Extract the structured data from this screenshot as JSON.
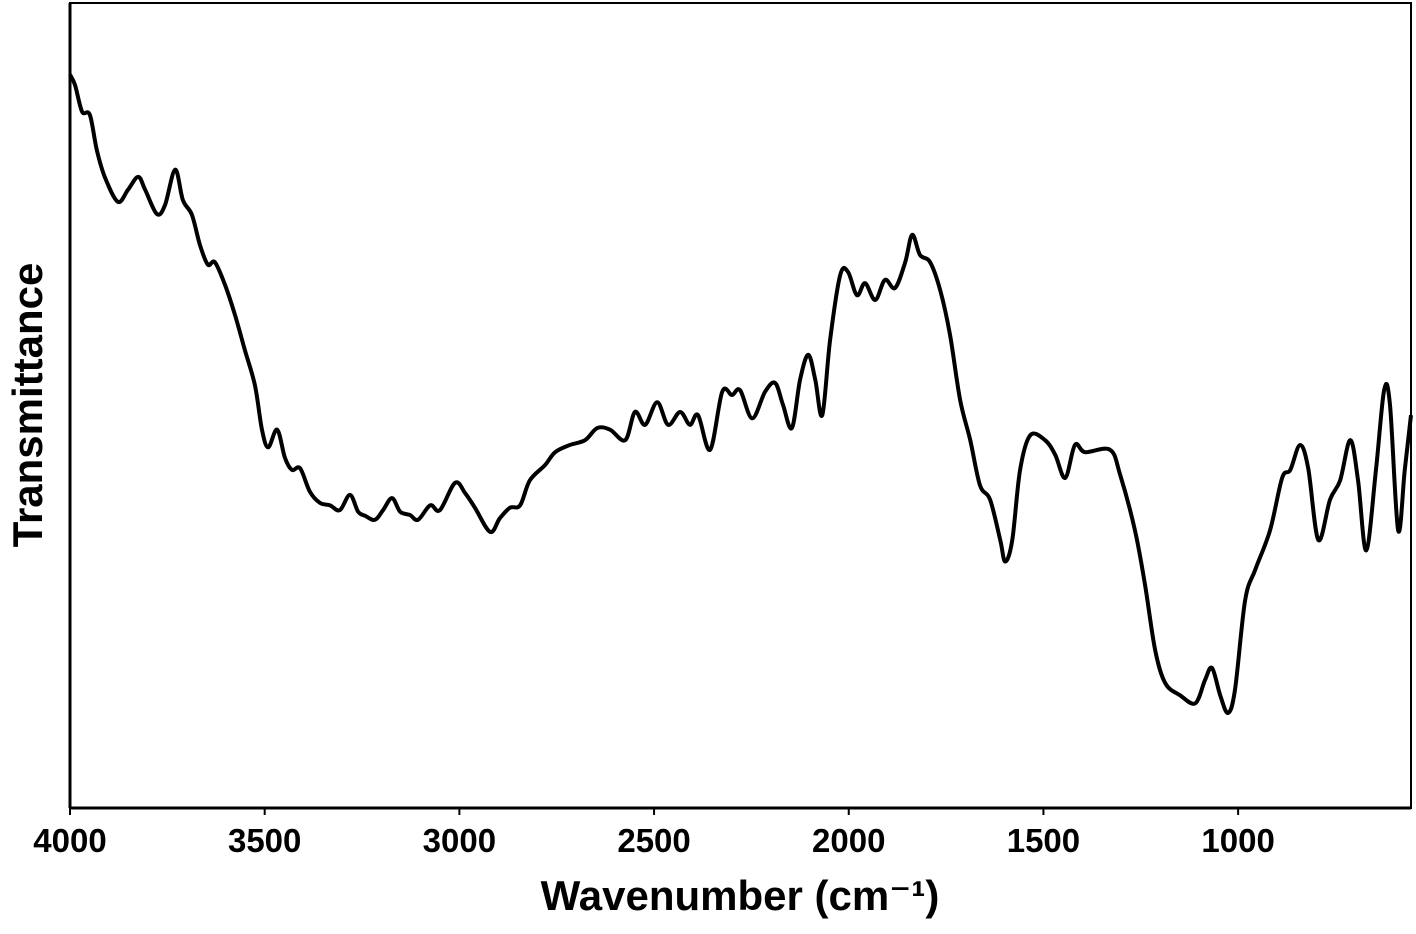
{
  "chart_data": {
    "type": "line",
    "x_label": "Wavenumber (cm⁻¹)",
    "y_label": "Transmittance",
    "xlim": [
      4000,
      556
    ],
    "xticks": [
      4000,
      3500,
      3000,
      2500,
      2000,
      1500,
      1000
    ],
    "ylim": [
      0,
      100
    ],
    "color": "#000000",
    "x": [
      4000,
      3987,
      3969,
      3949,
      3931,
      3910,
      3877,
      3851,
      3825,
      3807,
      3777,
      3756,
      3730,
      3710,
      3687,
      3666,
      3646,
      3628,
      3602,
      3576,
      3551,
      3525,
      3507,
      3491,
      3468,
      3448,
      3430,
      3409,
      3384,
      3358,
      3332,
      3307,
      3281,
      3260,
      3242,
      3217,
      3196,
      3173,
      3152,
      3127,
      3106,
      3075,
      3050,
      3011,
      2985,
      2960,
      2921,
      2896,
      2870,
      2844,
      2819,
      2780,
      2754,
      2716,
      2677,
      2646,
      2613,
      2574,
      2549,
      2523,
      2492,
      2464,
      2433,
      2408,
      2387,
      2356,
      2325,
      2300,
      2279,
      2248,
      2215,
      2189,
      2169,
      2146,
      2125,
      2104,
      2086,
      2068,
      2048,
      2022,
      2002,
      1979,
      1958,
      1932,
      1907,
      1881,
      1855,
      1837,
      1817,
      1791,
      1765,
      1740,
      1714,
      1688,
      1663,
      1637,
      1611,
      1598,
      1580,
      1560,
      1534,
      1496,
      1470,
      1444,
      1419,
      1393,
      1329,
      1303,
      1265,
      1239,
      1213,
      1187,
      1149,
      1110,
      1085,
      1067,
      1046,
      1026,
      1008,
      982,
      956,
      918,
      887,
      866,
      841,
      820,
      794,
      764,
      738,
      712,
      692,
      671,
      646,
      625,
      610,
      589,
      572,
      556
    ],
    "values": [
      91.1,
      89.8,
      86.5,
      86.1,
      81.7,
      78.3,
      75.3,
      76.8,
      78.4,
      76.8,
      73.8,
      74.9,
      79.3,
      75.5,
      73.7,
      69.9,
      67.5,
      67.8,
      65.0,
      61.2,
      56.9,
      52.5,
      47.0,
      44.8,
      47.0,
      43.5,
      42.0,
      42.2,
      39.3,
      37.9,
      37.6,
      37.0,
      38.9,
      36.8,
      36.3,
      35.8,
      37.0,
      38.5,
      36.8,
      36.4,
      35.8,
      37.6,
      37.0,
      40.4,
      39.1,
      37.3,
      34.3,
      36.0,
      37.3,
      37.6,
      40.7,
      42.6,
      44.2,
      45.1,
      45.7,
      47.2,
      47.0,
      45.7,
      49.2,
      47.6,
      50.4,
      47.6,
      49.2,
      47.6,
      48.8,
      44.5,
      51.7,
      51.3,
      51.9,
      48.4,
      51.7,
      52.8,
      50.1,
      47.2,
      53.2,
      56.3,
      53.2,
      48.8,
      58.1,
      66.2,
      66.6,
      63.7,
      65.2,
      63.1,
      65.6,
      64.6,
      67.8,
      71.2,
      68.7,
      67.8,
      64.3,
      58.8,
      50.7,
      45.7,
      40.1,
      38.3,
      33.3,
      30.6,
      33.3,
      42.0,
      46.3,
      45.7,
      43.9,
      41.0,
      45.1,
      44.2,
      44.5,
      41.4,
      34.5,
      27.7,
      19.6,
      15.5,
      14.0,
      13.0,
      15.9,
      17.4,
      14.0,
      11.8,
      14.7,
      25.8,
      29.6,
      34.5,
      41.0,
      42.0,
      45.1,
      42.2,
      33.3,
      38.3,
      40.7,
      45.7,
      40.7,
      32.0,
      42.0,
      51.9,
      50.1,
      34.5,
      42.0,
      48.8
    ]
  }
}
